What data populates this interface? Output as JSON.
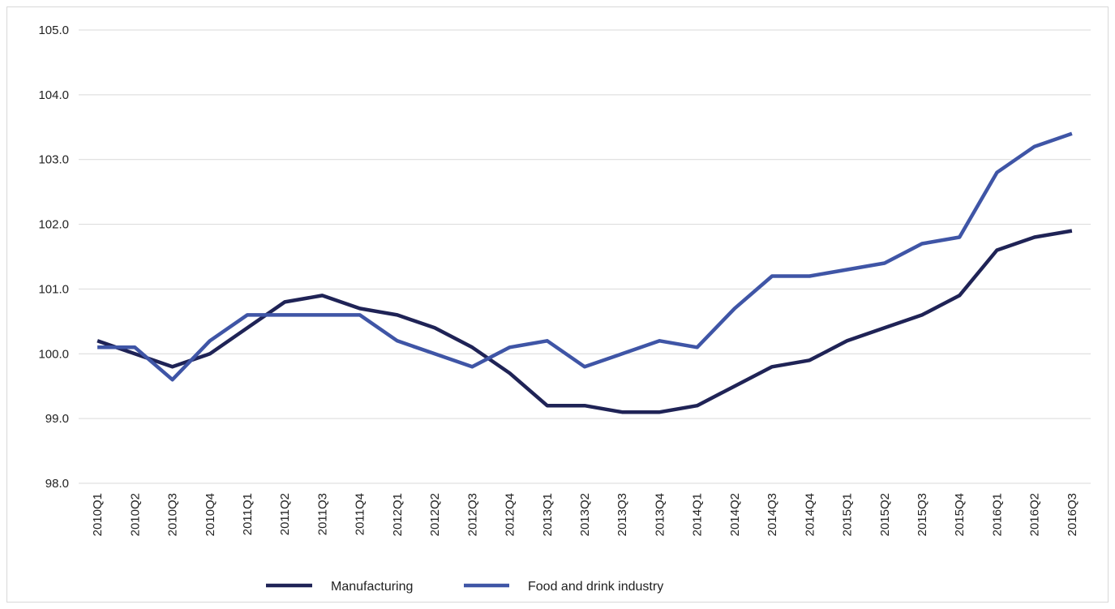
{
  "chart_data": {
    "type": "line",
    "title": "",
    "xlabel": "",
    "ylabel": "",
    "ylim": [
      98.0,
      105.0
    ],
    "yticks": [
      "98.0",
      "99.0",
      "100.0",
      "101.0",
      "102.0",
      "103.0",
      "104.0",
      "105.0"
    ],
    "grid": true,
    "legend_position": "bottom",
    "categories": [
      "2010Q1",
      "2010Q2",
      "2010Q3",
      "2010Q4",
      "2011Q1",
      "2011Q2",
      "2011Q3",
      "2011Q4",
      "2012Q1",
      "2012Q2",
      "2012Q3",
      "2012Q4",
      "2013Q1",
      "2013Q2",
      "2013Q3",
      "2013Q4",
      "2014Q1",
      "2014Q2",
      "2014Q3",
      "2014Q4",
      "2015Q1",
      "2015Q2",
      "2015Q3",
      "2015Q4",
      "2016Q1",
      "2016Q2",
      "2016Q3"
    ],
    "series": [
      {
        "name": "Manufacturing",
        "color": "#1f2356",
        "values": [
          100.2,
          100.0,
          99.8,
          100.0,
          100.4,
          100.8,
          100.9,
          100.7,
          100.6,
          100.4,
          100.1,
          99.7,
          99.2,
          99.2,
          99.1,
          99.1,
          99.2,
          99.5,
          99.8,
          99.9,
          100.2,
          100.4,
          100.6,
          100.9,
          101.6,
          101.8,
          101.9
        ]
      },
      {
        "name": "Food and drink industry",
        "color": "#3f55a6",
        "values": [
          100.1,
          100.1,
          99.6,
          100.2,
          100.6,
          100.6,
          100.6,
          100.6,
          100.2,
          100.0,
          99.8,
          100.1,
          100.2,
          99.8,
          100.0,
          100.2,
          100.1,
          100.7,
          101.2,
          101.2,
          101.3,
          101.4,
          101.7,
          101.8,
          102.8,
          103.2,
          103.4
        ]
      }
    ]
  }
}
